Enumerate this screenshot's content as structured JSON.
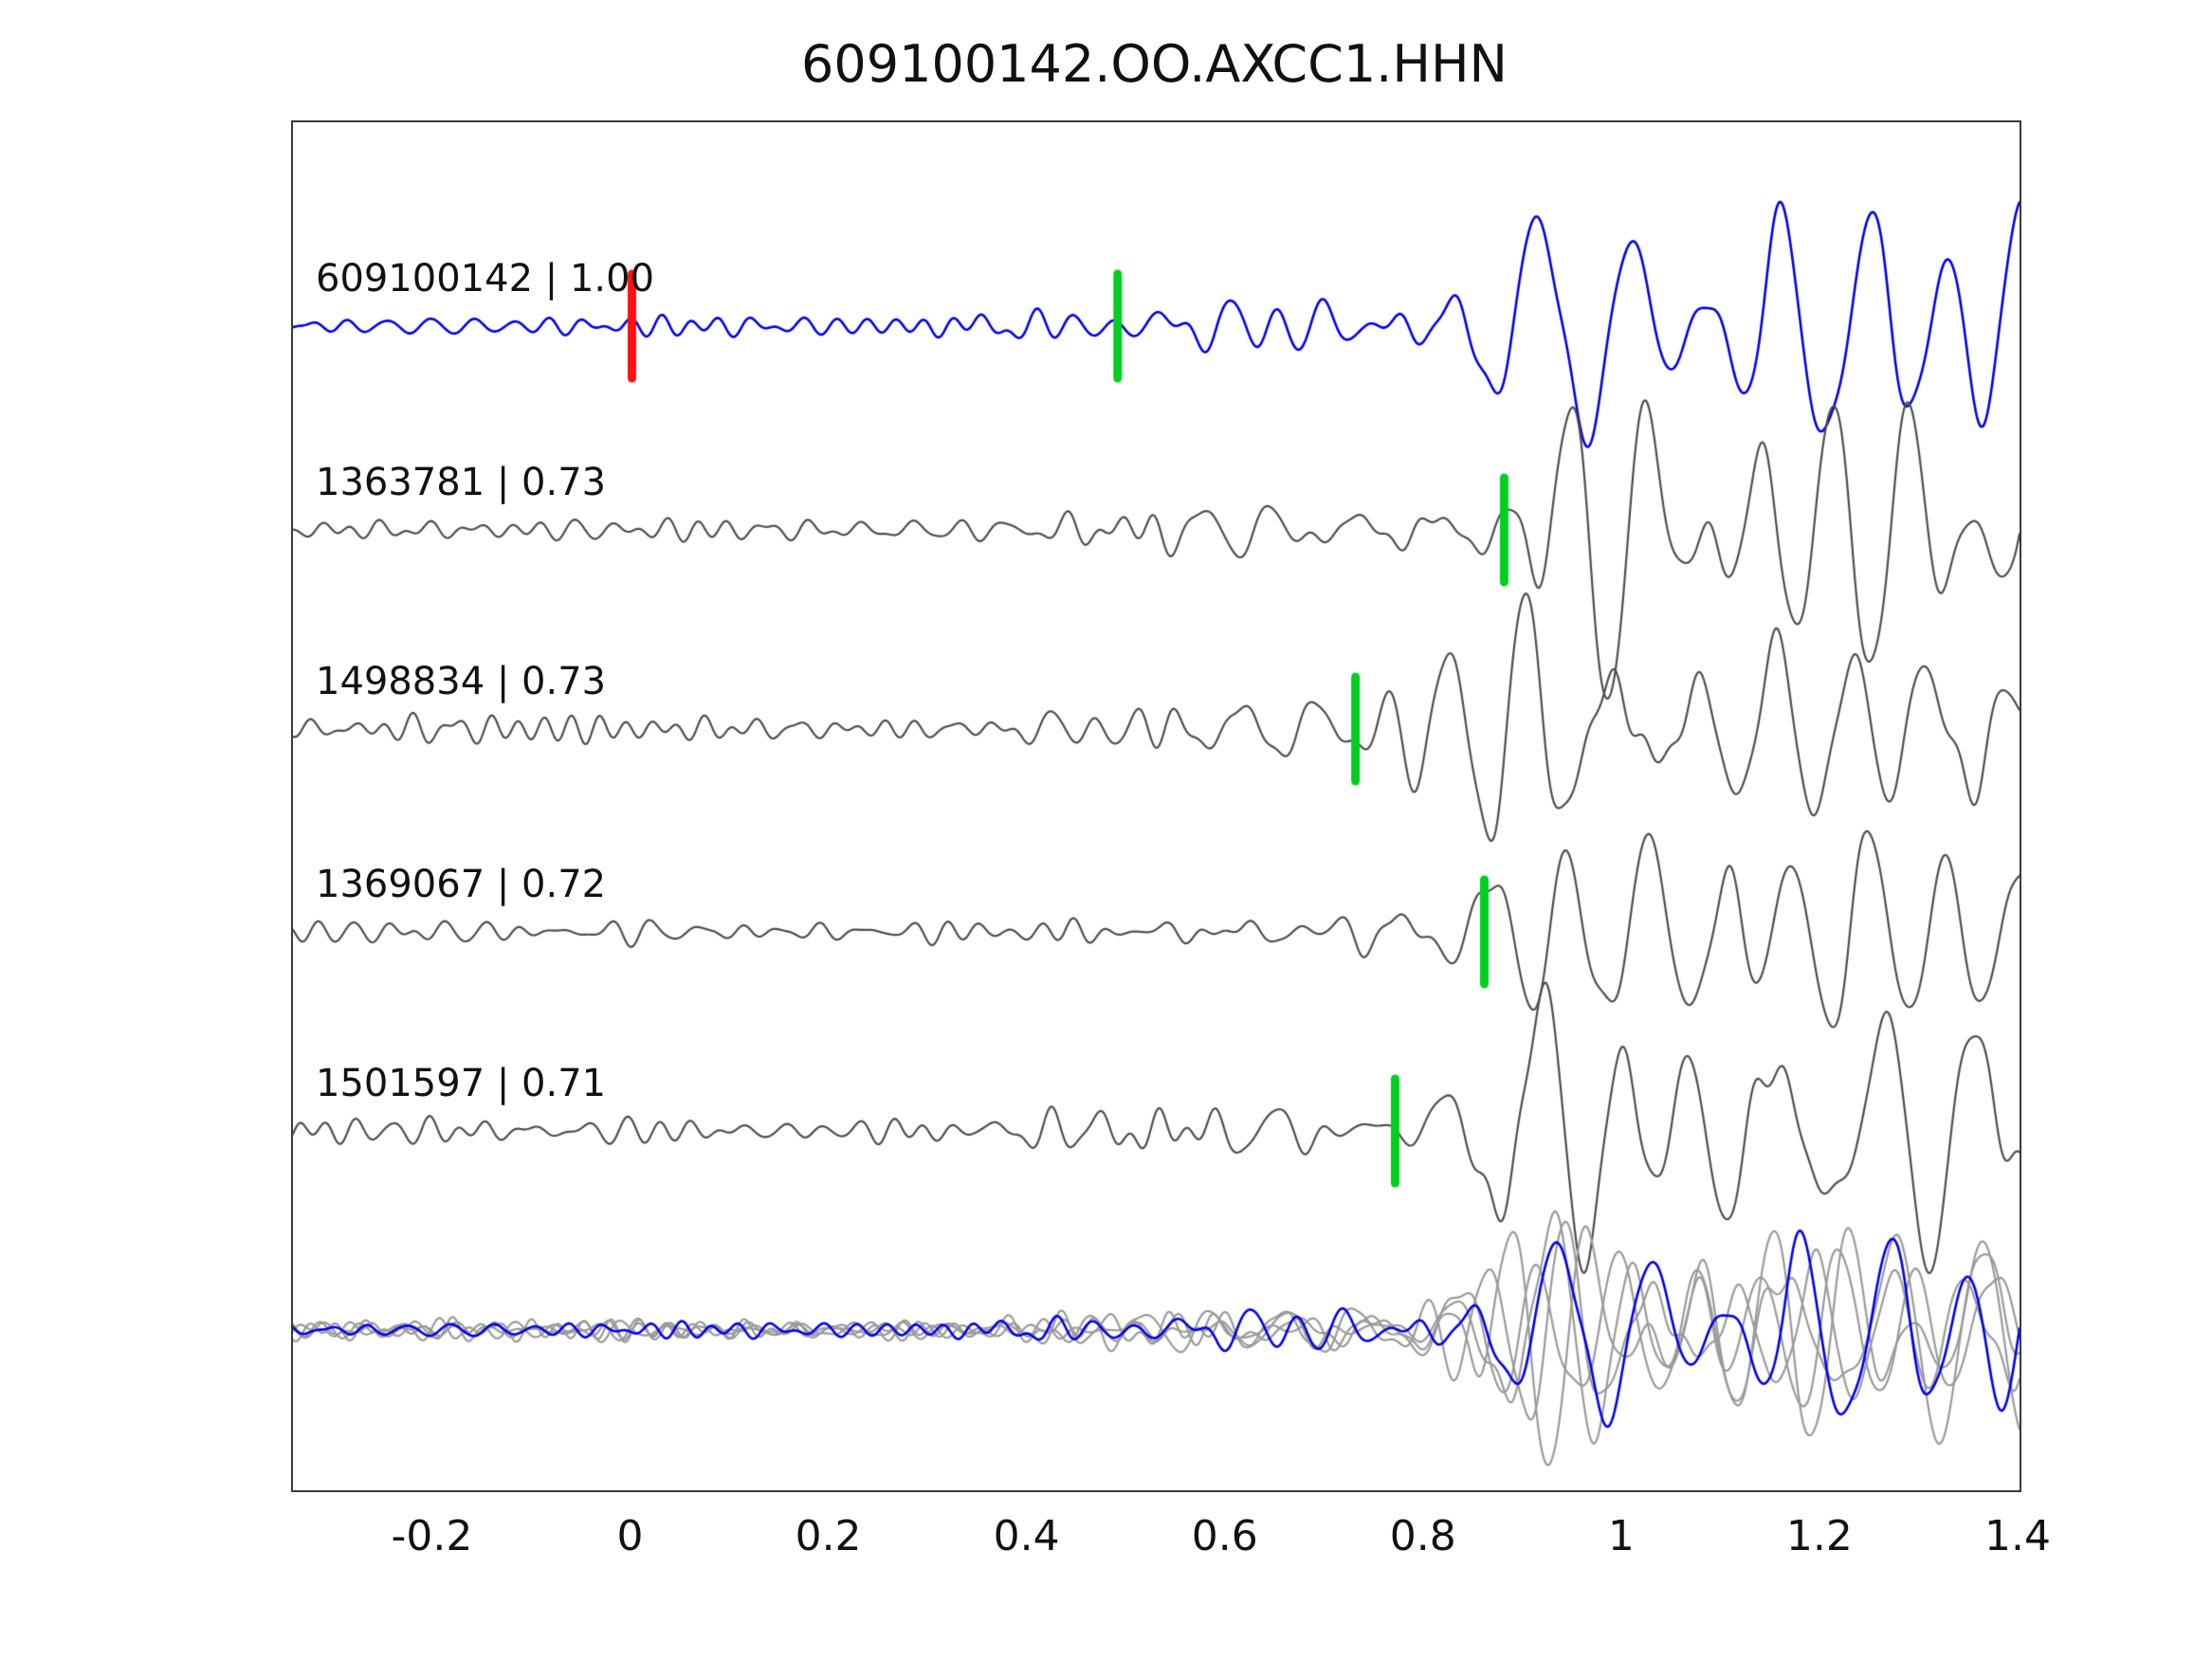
{
  "title": "609100142.OO.AXCC1.HHN",
  "axis": {
    "x_min": -0.342,
    "x_max": 1.4,
    "x_ticks": [
      -0.2,
      0,
      0.2,
      0.4,
      0.6,
      0.8,
      1.0,
      1.2,
      1.4
    ],
    "x_tick_labels": [
      "-0.2",
      "0",
      "0.2",
      "0.4",
      "0.6",
      "0.8",
      "1",
      "1.2",
      "1.4"
    ]
  },
  "colors": {
    "template_trace": "#0000ee",
    "detection_trace": "#4d4d4d",
    "overlay_trace": "#9a9a9a",
    "marker_red": "#ff1010",
    "marker_green": "#00cf20",
    "axis_box": "#3a3a3a",
    "text": "#111111"
  },
  "chart_data": {
    "type": "line",
    "title": "609100142.OO.AXCC1.HHN",
    "x_range": [
      -0.342,
      1.4
    ],
    "x_ticks": [
      -0.2,
      0,
      0.2,
      0.4,
      0.6,
      0.8,
      1.0,
      1.2,
      1.4
    ],
    "grid": false,
    "legend": false,
    "description": "Template-matching seismic waveform comparison on channel OO.AXCC1.HHN: template event 609100142 (blue, correlation 1.00) above four detected events (dark gray) with their cross-correlation values; bottom row overlays all five traces aligned on the event onset. Red tick marks the template pick at t=0; green ticks mark the pick on each trace. Each trace shows low-amplitude noise before ~0.3, emergent wiggles, then a large oscillatory wave packet beginning near its green pick and continuing to the right edge.",
    "traces": [
      {
        "id": "609100142",
        "correlation": "1.00",
        "label": "609100142 | 1.00",
        "role": "template",
        "color_key": "template_trace",
        "markers": [
          {
            "color": "red",
            "t": 0.0
          },
          {
            "color": "green",
            "t": 0.49
          }
        ],
        "event_onset": 0.78,
        "event_amp": 105,
        "noise_amp": 8,
        "seed": 7
      },
      {
        "id": "1363781",
        "correlation": "0.73",
        "label": "1363781 | 0.73",
        "role": "detection",
        "color_key": "detection_trace",
        "markers": [
          {
            "color": "green",
            "t": 0.88
          }
        ],
        "event_onset": 0.86,
        "event_amp": 108,
        "noise_amp": 9,
        "seed": 13
      },
      {
        "id": "1498834",
        "correlation": "0.73",
        "label": "1498834 | 0.73",
        "role": "detection",
        "color_key": "detection_trace",
        "markers": [
          {
            "color": "green",
            "t": 0.73
          }
        ],
        "event_onset": 0.76,
        "event_amp": 102,
        "noise_amp": 9,
        "seed": 21
      },
      {
        "id": "1369067",
        "correlation": "0.72",
        "label": "1369067 | 0.72",
        "role": "detection",
        "color_key": "detection_trace",
        "markers": [
          {
            "color": "green",
            "t": 0.86
          }
        ],
        "event_onset": 0.83,
        "event_amp": 104,
        "noise_amp": 7,
        "seed": 33
      },
      {
        "id": "1501597",
        "correlation": "0.71",
        "label": "1501597 | 0.71",
        "role": "detection",
        "color_key": "detection_trace",
        "markers": [
          {
            "color": "green",
            "t": 0.77
          }
        ],
        "event_onset": 0.79,
        "event_amp": 100,
        "noise_amp": 8,
        "seed": 41
      }
    ],
    "overlay_row": {
      "description": "All five traces overlaid (detections gray, template blue), aligned on event onset",
      "align_t": 0.8,
      "amplitude_scale": 0.8
    }
  }
}
